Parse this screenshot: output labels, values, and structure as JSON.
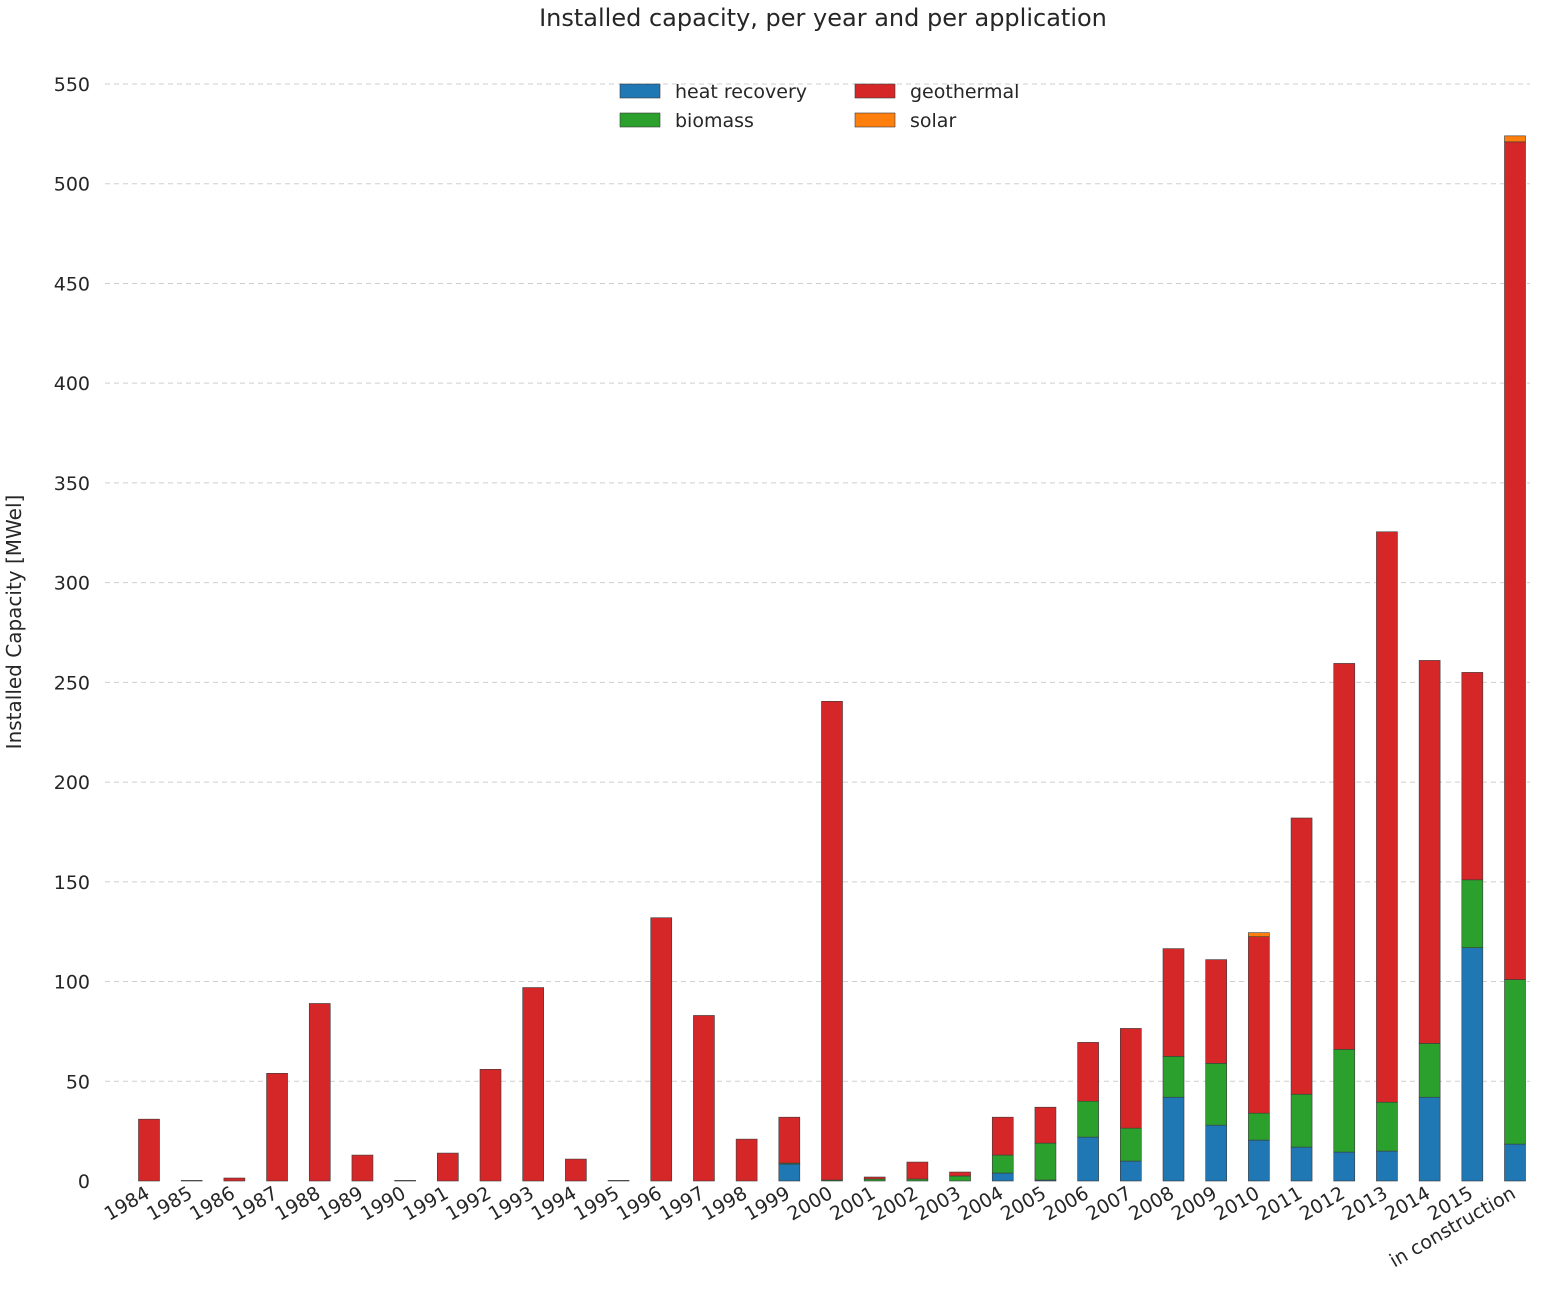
{
  "chart_data": {
    "type": "bar",
    "stacked": true,
    "title": "Installed capacity, per year and per application",
    "xlabel": "",
    "ylabel": "Installed Capacity [MWel]",
    "ylim": [
      0,
      560
    ],
    "yticks": [
      0,
      50,
      100,
      150,
      200,
      250,
      300,
      350,
      400,
      450,
      500,
      550
    ],
    "grid": "horizontal-dashed",
    "legend_position": "top-center",
    "categories": [
      "1984",
      "1985",
      "1986",
      "1987",
      "1988",
      "1989",
      "1990",
      "1991",
      "1992",
      "1993",
      "1994",
      "1995",
      "1996",
      "1997",
      "1998",
      "1999",
      "2000",
      "2001",
      "2002",
      "2003",
      "2004",
      "2005",
      "2006",
      "2007",
      "2008",
      "2009",
      "2010",
      "2011",
      "2012",
      "2013",
      "2014",
      "2015",
      "in construction"
    ],
    "series": [
      {
        "name": "heat recovery",
        "color": "#1f77b4",
        "values": [
          0,
          0,
          0,
          0,
          0,
          0,
          0,
          0,
          0,
          0,
          0,
          0,
          0,
          0,
          0,
          8.5,
          0,
          0,
          0,
          0,
          4,
          0.5,
          22,
          10,
          42,
          28,
          20.5,
          17,
          14.5,
          15,
          42,
          117,
          18.5
        ]
      },
      {
        "name": "biomass",
        "color": "#2ca02c",
        "values": [
          0,
          0,
          0,
          0,
          0,
          0,
          0,
          0,
          0,
          0,
          0,
          0,
          0,
          0,
          0,
          0.5,
          0.5,
          1,
          1,
          2.5,
          9,
          18.5,
          18,
          16.5,
          20.5,
          31,
          13.5,
          26.5,
          51.5,
          24.5,
          27,
          34,
          82.5
        ]
      },
      {
        "name": "geothermal",
        "color": "#d62728",
        "values": [
          31,
          0.3,
          1.5,
          54,
          89,
          13,
          0.3,
          14,
          56,
          97,
          11,
          0.3,
          132,
          83,
          21,
          23,
          240,
          1,
          8.5,
          2,
          19,
          18,
          29.5,
          50,
          54,
          52,
          88.5,
          138.5,
          193.5,
          286,
          192,
          104,
          420
        ]
      },
      {
        "name": "solar",
        "color": "#ff7f0e",
        "values": [
          0,
          0,
          0,
          0,
          0,
          0,
          0,
          0,
          0,
          0,
          0,
          0,
          0,
          0,
          0,
          0,
          0,
          0,
          0,
          0,
          0,
          0,
          0,
          0,
          0,
          0,
          2,
          0,
          0,
          0,
          0,
          0,
          3
        ]
      }
    ]
  }
}
